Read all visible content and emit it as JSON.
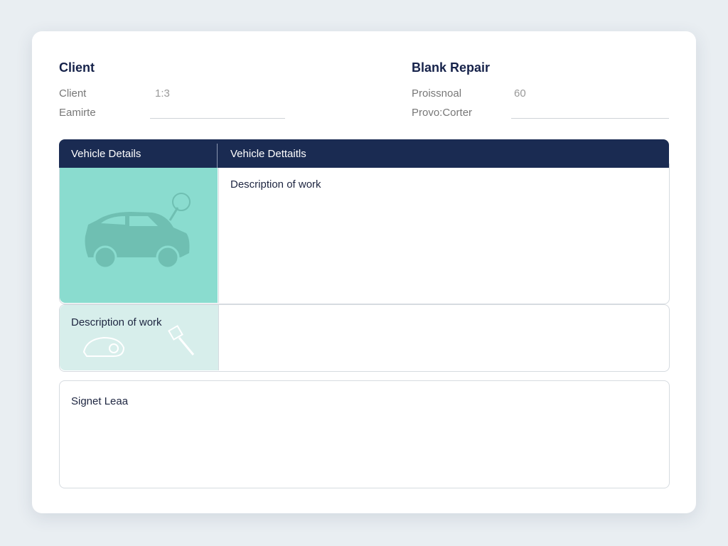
{
  "client": {
    "title": "Client",
    "fields": [
      {
        "label": "Client",
        "value": "1:3"
      },
      {
        "label": "Eamirte",
        "value": ""
      }
    ]
  },
  "repair": {
    "title": "Blank Repair",
    "fields": [
      {
        "label": "Proissnoal",
        "value": "60"
      },
      {
        "label": "Provo:Corter",
        "value": ""
      }
    ]
  },
  "table": {
    "headers": [
      "Vehicle Details",
      "Vehicle Dettaitls"
    ],
    "main_label": "Description of work",
    "row2_label": "Description of work"
  },
  "signature": {
    "label": "Signet Leaa"
  },
  "colors": {
    "header": "#1a2b52",
    "teal": "#8adccf",
    "teal_light": "#d7eeeb"
  },
  "icons": [
    "car-icon",
    "wheel-wrench-icon",
    "snail-car-icon",
    "wrench-icon"
  ]
}
